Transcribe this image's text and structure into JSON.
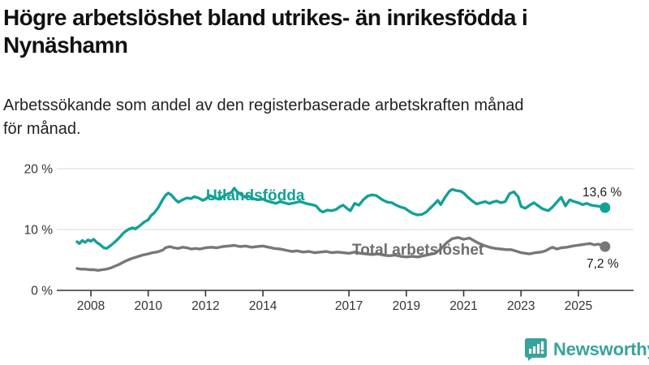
{
  "header": {
    "title_line1": "Högre arbetslöshet bland utrikes- än inrikesfödda i",
    "title_line2": "Nynäshamn",
    "subtitle_line1": "Arbetssökande som andel av den registerbaserade arbetskraften månad",
    "subtitle_line2": "för månad."
  },
  "chart_data": {
    "type": "line",
    "title": "Högre arbetslöshet bland utrikes- än inrikesfödda i Nynäshamn",
    "subtitle": "Arbetssökande som andel av den registerbaserade arbetskraften månad för månad.",
    "grid": "horizontal-only",
    "x_axis": {
      "ticks": [
        2008,
        2010,
        2012,
        2014,
        2017,
        2019,
        2021,
        2023,
        2025
      ],
      "range": [
        2007.3,
        2026.2
      ]
    },
    "y_axis": {
      "range": [
        0,
        20
      ],
      "ticks": [
        {
          "value": 20,
          "label": "20 %"
        },
        {
          "value": 10,
          "label": "10 %"
        },
        {
          "value": 0,
          "label": "0 %"
        }
      ]
    },
    "series": [
      {
        "name": "Utlandsfödda",
        "color": "#12A196",
        "end_label": "13,6 %",
        "end_value": 13.6,
        "points": [
          [
            2007.52,
            8.0
          ],
          [
            2007.6,
            7.7
          ],
          [
            2007.7,
            8.2
          ],
          [
            2007.8,
            7.9
          ],
          [
            2007.9,
            8.3
          ],
          [
            2008.0,
            8.1
          ],
          [
            2008.1,
            8.4
          ],
          [
            2008.2,
            7.9
          ],
          [
            2008.3,
            7.6
          ],
          [
            2008.45,
            7.0
          ],
          [
            2008.55,
            6.9
          ],
          [
            2008.7,
            7.4
          ],
          [
            2008.85,
            8.0
          ],
          [
            2009.0,
            8.7
          ],
          [
            2009.15,
            9.5
          ],
          [
            2009.3,
            10.0
          ],
          [
            2009.45,
            10.3
          ],
          [
            2009.55,
            10.1
          ],
          [
            2009.7,
            10.6
          ],
          [
            2009.85,
            11.2
          ],
          [
            2010.0,
            11.6
          ],
          [
            2010.1,
            12.3
          ],
          [
            2010.2,
            12.7
          ],
          [
            2010.35,
            13.6
          ],
          [
            2010.5,
            14.9
          ],
          [
            2010.6,
            15.6
          ],
          [
            2010.7,
            16.0
          ],
          [
            2010.8,
            15.7
          ],
          [
            2010.95,
            14.9
          ],
          [
            2011.05,
            14.5
          ],
          [
            2011.2,
            14.9
          ],
          [
            2011.35,
            15.2
          ],
          [
            2011.5,
            15.1
          ],
          [
            2011.6,
            15.4
          ],
          [
            2011.75,
            15.2
          ],
          [
            2011.9,
            14.8
          ],
          [
            2012.0,
            15.0
          ],
          [
            2012.15,
            15.6
          ],
          [
            2012.3,
            15.3
          ],
          [
            2012.45,
            15.0
          ],
          [
            2012.6,
            15.4
          ],
          [
            2012.75,
            15.8
          ],
          [
            2012.9,
            16.1
          ],
          [
            2013.0,
            16.8
          ],
          [
            2013.1,
            16.2
          ],
          [
            2013.25,
            15.7
          ],
          [
            2013.4,
            15.3
          ],
          [
            2013.5,
            15.5
          ],
          [
            2013.65,
            15.1
          ],
          [
            2013.8,
            14.9
          ],
          [
            2014.0,
            15.0
          ],
          [
            2014.15,
            14.7
          ],
          [
            2014.3,
            14.5
          ],
          [
            2014.45,
            14.3
          ],
          [
            2014.6,
            14.6
          ],
          [
            2014.75,
            14.4
          ],
          [
            2014.9,
            14.2
          ],
          [
            2015.1,
            14.4
          ],
          [
            2015.3,
            14.6
          ],
          [
            2015.5,
            14.3
          ],
          [
            2015.7,
            14.1
          ],
          [
            2015.85,
            13.9
          ],
          [
            2016.0,
            13.1
          ],
          [
            2016.1,
            12.9
          ],
          [
            2016.25,
            13.2
          ],
          [
            2016.4,
            13.1
          ],
          [
            2016.55,
            13.3
          ],
          [
            2016.7,
            13.8
          ],
          [
            2016.8,
            14.0
          ],
          [
            2016.95,
            13.4
          ],
          [
            2017.05,
            13.1
          ],
          [
            2017.2,
            14.3
          ],
          [
            2017.35,
            14.0
          ],
          [
            2017.5,
            14.9
          ],
          [
            2017.65,
            15.5
          ],
          [
            2017.8,
            15.7
          ],
          [
            2017.95,
            15.6
          ],
          [
            2018.1,
            15.1
          ],
          [
            2018.2,
            14.8
          ],
          [
            2018.35,
            14.5
          ],
          [
            2018.5,
            14.4
          ],
          [
            2018.65,
            14.0
          ],
          [
            2018.8,
            13.7
          ],
          [
            2018.95,
            13.5
          ],
          [
            2019.1,
            13.0
          ],
          [
            2019.25,
            12.6
          ],
          [
            2019.4,
            12.4
          ],
          [
            2019.55,
            12.5
          ],
          [
            2019.7,
            12.9
          ],
          [
            2019.85,
            13.6
          ],
          [
            2020.0,
            14.3
          ],
          [
            2020.1,
            14.8
          ],
          [
            2020.2,
            14.1
          ],
          [
            2020.35,
            15.3
          ],
          [
            2020.5,
            16.3
          ],
          [
            2020.6,
            16.6
          ],
          [
            2020.75,
            16.4
          ],
          [
            2020.9,
            16.3
          ],
          [
            2021.0,
            16.0
          ],
          [
            2021.15,
            15.3
          ],
          [
            2021.3,
            14.7
          ],
          [
            2021.45,
            14.2
          ],
          [
            2021.6,
            14.4
          ],
          [
            2021.75,
            14.6
          ],
          [
            2021.9,
            14.3
          ],
          [
            2022.0,
            14.5
          ],
          [
            2022.15,
            14.7
          ],
          [
            2022.3,
            14.4
          ],
          [
            2022.45,
            14.6
          ],
          [
            2022.6,
            15.9
          ],
          [
            2022.75,
            16.2
          ],
          [
            2022.9,
            15.4
          ],
          [
            2023.0,
            13.8
          ],
          [
            2023.15,
            13.5
          ],
          [
            2023.3,
            14.0
          ],
          [
            2023.45,
            14.4
          ],
          [
            2023.6,
            13.9
          ],
          [
            2023.75,
            13.4
          ],
          [
            2023.95,
            13.1
          ],
          [
            2024.1,
            13.7
          ],
          [
            2024.25,
            14.5
          ],
          [
            2024.4,
            15.3
          ],
          [
            2024.55,
            13.9
          ],
          [
            2024.7,
            14.9
          ],
          [
            2024.85,
            14.6
          ],
          [
            2025.0,
            14.4
          ],
          [
            2025.15,
            14.1
          ],
          [
            2025.3,
            14.3
          ],
          [
            2025.45,
            14.0
          ],
          [
            2025.6,
            13.9
          ],
          [
            2025.75,
            13.8
          ],
          [
            2025.93,
            13.6
          ]
        ]
      },
      {
        "name": "Total arbetslöshet",
        "color": "#777777",
        "label_color": "#6E6E6E",
        "end_label": "7,2 %",
        "end_value": 7.2,
        "points": [
          [
            2007.52,
            3.6
          ],
          [
            2007.65,
            3.5
          ],
          [
            2007.8,
            3.5
          ],
          [
            2007.95,
            3.4
          ],
          [
            2008.1,
            3.4
          ],
          [
            2008.25,
            3.3
          ],
          [
            2008.4,
            3.4
          ],
          [
            2008.55,
            3.5
          ],
          [
            2008.7,
            3.7
          ],
          [
            2008.85,
            4.0
          ],
          [
            2009.0,
            4.3
          ],
          [
            2009.2,
            4.8
          ],
          [
            2009.4,
            5.2
          ],
          [
            2009.6,
            5.5
          ],
          [
            2009.8,
            5.8
          ],
          [
            2010.0,
            6.0
          ],
          [
            2010.15,
            6.2
          ],
          [
            2010.3,
            6.3
          ],
          [
            2010.5,
            6.6
          ],
          [
            2010.6,
            7.0
          ],
          [
            2010.75,
            7.2
          ],
          [
            2010.9,
            7.0
          ],
          [
            2011.05,
            6.9
          ],
          [
            2011.2,
            7.1
          ],
          [
            2011.35,
            7.0
          ],
          [
            2011.5,
            6.8
          ],
          [
            2011.65,
            6.9
          ],
          [
            2011.8,
            6.8
          ],
          [
            2012.0,
            7.0
          ],
          [
            2012.2,
            7.1
          ],
          [
            2012.4,
            7.0
          ],
          [
            2012.6,
            7.2
          ],
          [
            2012.8,
            7.3
          ],
          [
            2013.0,
            7.4
          ],
          [
            2013.2,
            7.2
          ],
          [
            2013.4,
            7.3
          ],
          [
            2013.6,
            7.1
          ],
          [
            2013.8,
            7.2
          ],
          [
            2014.0,
            7.3
          ],
          [
            2014.2,
            7.1
          ],
          [
            2014.4,
            6.9
          ],
          [
            2014.6,
            6.8
          ],
          [
            2014.8,
            6.6
          ],
          [
            2015.0,
            6.4
          ],
          [
            2015.2,
            6.5
          ],
          [
            2015.4,
            6.3
          ],
          [
            2015.6,
            6.4
          ],
          [
            2015.8,
            6.2
          ],
          [
            2016.0,
            6.3
          ],
          [
            2016.2,
            6.4
          ],
          [
            2016.4,
            6.2
          ],
          [
            2016.6,
            6.3
          ],
          [
            2016.8,
            6.2
          ],
          [
            2017.0,
            6.1
          ],
          [
            2017.2,
            6.3
          ],
          [
            2017.4,
            6.1
          ],
          [
            2017.6,
            6.0
          ],
          [
            2017.8,
            5.9
          ],
          [
            2018.0,
            6.0
          ],
          [
            2018.2,
            5.8
          ],
          [
            2018.4,
            5.7
          ],
          [
            2018.6,
            5.8
          ],
          [
            2018.8,
            5.6
          ],
          [
            2019.0,
            5.5
          ],
          [
            2019.2,
            5.6
          ],
          [
            2019.4,
            5.5
          ],
          [
            2019.6,
            5.7
          ],
          [
            2019.8,
            5.9
          ],
          [
            2020.0,
            6.1
          ],
          [
            2020.2,
            6.8
          ],
          [
            2020.4,
            7.8
          ],
          [
            2020.6,
            8.5
          ],
          [
            2020.8,
            8.7
          ],
          [
            2021.0,
            8.4
          ],
          [
            2021.2,
            8.6
          ],
          [
            2021.35,
            8.2
          ],
          [
            2021.5,
            7.8
          ],
          [
            2021.7,
            7.4
          ],
          [
            2021.9,
            7.1
          ],
          [
            2022.1,
            6.9
          ],
          [
            2022.3,
            6.8
          ],
          [
            2022.5,
            6.7
          ],
          [
            2022.65,
            6.7
          ],
          [
            2022.8,
            6.5
          ],
          [
            2023.0,
            6.2
          ],
          [
            2023.15,
            6.1
          ],
          [
            2023.3,
            6.0
          ],
          [
            2023.5,
            6.2
          ],
          [
            2023.7,
            6.3
          ],
          [
            2023.85,
            6.5
          ],
          [
            2024.0,
            6.9
          ],
          [
            2024.1,
            7.1
          ],
          [
            2024.25,
            6.8
          ],
          [
            2024.4,
            7.0
          ],
          [
            2024.6,
            7.1
          ],
          [
            2024.8,
            7.3
          ],
          [
            2024.95,
            7.4
          ],
          [
            2025.1,
            7.5
          ],
          [
            2025.25,
            7.6
          ],
          [
            2025.4,
            7.7
          ],
          [
            2025.55,
            7.5
          ],
          [
            2025.7,
            7.6
          ],
          [
            2025.93,
            7.2
          ]
        ]
      }
    ]
  },
  "branding": {
    "logo_text": "Newsworthy",
    "logo_color": "#38A39B",
    "logo_icon": "bar-chart-speech-bubble"
  },
  "colors": {
    "accent_teal": "#12A196",
    "line_gray": "#777777",
    "grid": "#D9D9D9",
    "axis": "#333333"
  }
}
